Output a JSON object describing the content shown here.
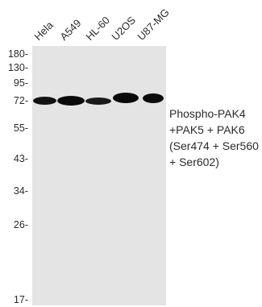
{
  "lanes": [
    "Hela",
    "A549",
    "HL-60",
    "U2OS",
    "U87-MG"
  ],
  "markers": [
    "180-",
    "130-",
    "95-",
    "72-",
    "55-",
    "43-",
    "34-",
    "26-",
    "17-"
  ],
  "target_lines": [
    "Phospho-PAK4",
    "+PAK5 + PAK6",
    "(Ser474 + Ser560",
    "+ Ser602)"
  ],
  "colors": {
    "blot_bg": "#e4e4e4",
    "band": "#0d0d0d",
    "arrow": "#777777"
  }
}
